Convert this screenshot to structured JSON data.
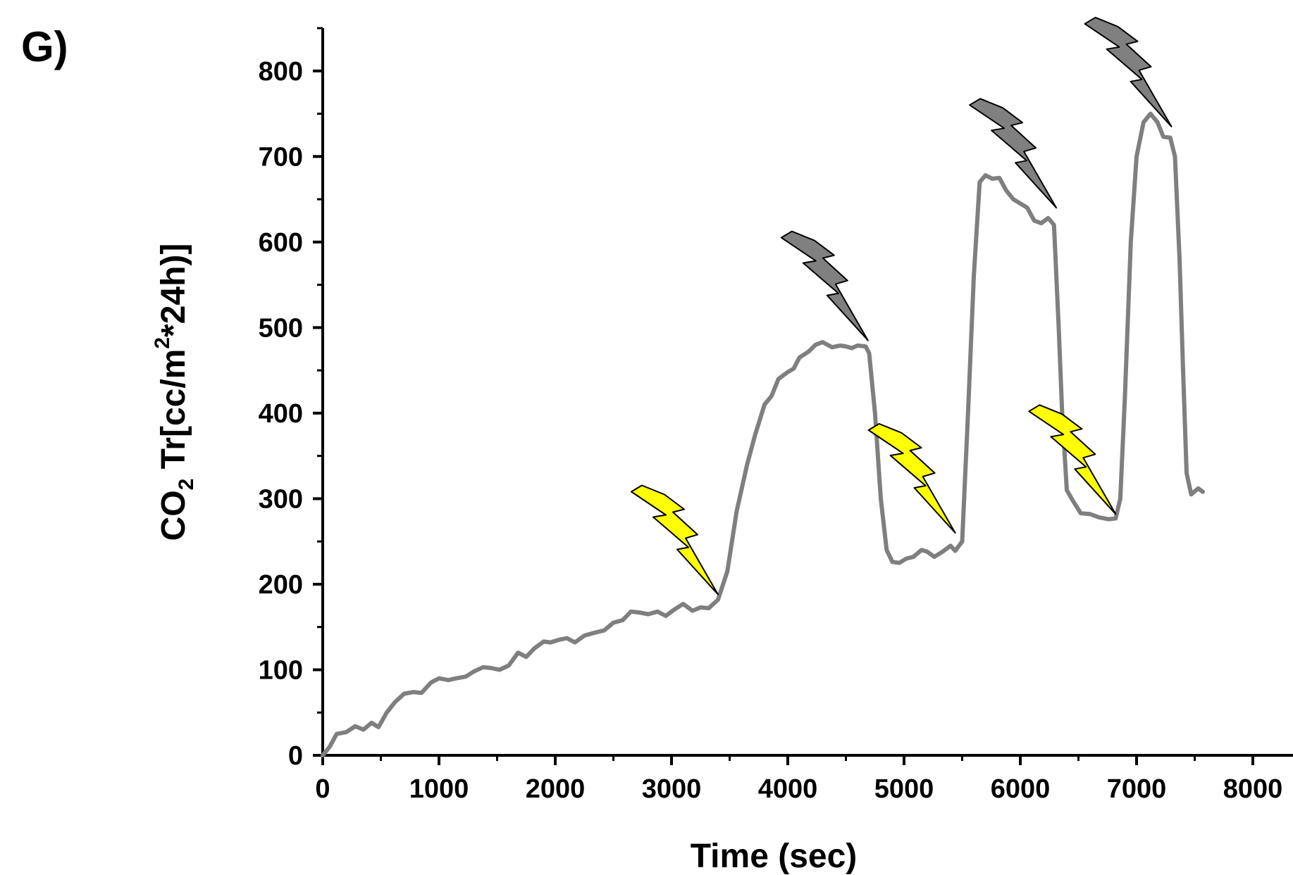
{
  "panel_label": "G)",
  "colors": {
    "series": "#7f7f7f",
    "bolt_yellow": "#ffff00",
    "bolt_gray": "#808080",
    "axis": "#000000"
  },
  "chart_data": {
    "type": "line",
    "xlabel": "Time (sec)",
    "ylabel": {
      "prefix": "CO",
      "sub": "2",
      "middle": " Tr[cc/m",
      "sup": "2",
      "suffix": "*24h)]"
    },
    "xlim": [
      0,
      8000
    ],
    "ylim": [
      0,
      850
    ],
    "xticks": [
      0,
      1000,
      2000,
      3000,
      4000,
      5000,
      6000,
      7000,
      8000
    ],
    "yticks": [
      0,
      100,
      200,
      300,
      400,
      500,
      600,
      700,
      800
    ],
    "grid": false,
    "series": [
      {
        "points": [
          [
            0,
            0
          ],
          [
            60,
            10
          ],
          [
            120,
            25
          ],
          [
            200,
            27
          ],
          [
            280,
            34
          ],
          [
            350,
            30
          ],
          [
            420,
            38
          ],
          [
            480,
            33
          ],
          [
            550,
            50
          ],
          [
            620,
            62
          ],
          [
            700,
            72
          ],
          [
            780,
            74
          ],
          [
            850,
            73
          ],
          [
            930,
            85
          ],
          [
            1000,
            90
          ],
          [
            1080,
            88
          ],
          [
            1150,
            90
          ],
          [
            1230,
            92
          ],
          [
            1300,
            98
          ],
          [
            1380,
            103
          ],
          [
            1450,
            102
          ],
          [
            1520,
            100
          ],
          [
            1600,
            105
          ],
          [
            1680,
            120
          ],
          [
            1750,
            115
          ],
          [
            1820,
            125
          ],
          [
            1900,
            133
          ],
          [
            1960,
            132
          ],
          [
            2030,
            135
          ],
          [
            2100,
            137
          ],
          [
            2170,
            132
          ],
          [
            2250,
            140
          ],
          [
            2330,
            143
          ],
          [
            2420,
            146
          ],
          [
            2500,
            155
          ],
          [
            2580,
            158
          ],
          [
            2650,
            168
          ],
          [
            2720,
            167
          ],
          [
            2800,
            165
          ],
          [
            2880,
            168
          ],
          [
            2950,
            163
          ],
          [
            3020,
            170
          ],
          [
            3100,
            177
          ],
          [
            3180,
            169
          ],
          [
            3250,
            173
          ],
          [
            3320,
            172
          ],
          [
            3400,
            182
          ],
          [
            3480,
            215
          ],
          [
            3560,
            285
          ],
          [
            3650,
            340
          ],
          [
            3720,
            375
          ],
          [
            3800,
            410
          ],
          [
            3860,
            420
          ],
          [
            3920,
            440
          ],
          [
            4000,
            448
          ],
          [
            4050,
            452
          ],
          [
            4100,
            465
          ],
          [
            4180,
            472
          ],
          [
            4240,
            480
          ],
          [
            4300,
            483
          ],
          [
            4380,
            477
          ],
          [
            4450,
            479
          ],
          [
            4500,
            478
          ],
          [
            4550,
            476
          ],
          [
            4600,
            479
          ],
          [
            4670,
            478
          ],
          [
            4700,
            470
          ],
          [
            4750,
            400
          ],
          [
            4800,
            300
          ],
          [
            4850,
            240
          ],
          [
            4900,
            226
          ],
          [
            4960,
            225
          ],
          [
            5020,
            230
          ],
          [
            5080,
            232
          ],
          [
            5150,
            240
          ],
          [
            5200,
            238
          ],
          [
            5260,
            232
          ],
          [
            5330,
            238
          ],
          [
            5400,
            245
          ],
          [
            5440,
            239
          ],
          [
            5500,
            250
          ],
          [
            5550,
            400
          ],
          [
            5600,
            560
          ],
          [
            5650,
            670
          ],
          [
            5700,
            678
          ],
          [
            5760,
            674
          ],
          [
            5820,
            675
          ],
          [
            5880,
            660
          ],
          [
            5940,
            650
          ],
          [
            6000,
            645
          ],
          [
            6060,
            640
          ],
          [
            6120,
            625
          ],
          [
            6180,
            622
          ],
          [
            6240,
            628
          ],
          [
            6290,
            620
          ],
          [
            6330,
            500
          ],
          [
            6360,
            400
          ],
          [
            6400,
            310
          ],
          [
            6450,
            298
          ],
          [
            6520,
            283
          ],
          [
            6600,
            282
          ],
          [
            6680,
            278
          ],
          [
            6760,
            276
          ],
          [
            6820,
            277
          ],
          [
            6860,
            300
          ],
          [
            6900,
            420
          ],
          [
            6950,
            600
          ],
          [
            7000,
            700
          ],
          [
            7060,
            740
          ],
          [
            7120,
            750
          ],
          [
            7180,
            740
          ],
          [
            7230,
            723
          ],
          [
            7290,
            722
          ],
          [
            7330,
            700
          ],
          [
            7370,
            580
          ],
          [
            7400,
            450
          ],
          [
            7430,
            330
          ],
          [
            7470,
            305
          ],
          [
            7530,
            312
          ],
          [
            7570,
            308
          ]
        ]
      }
    ],
    "annotations": [
      {
        "type": "lightning-bolt",
        "color": "yellow",
        "tip": [
          3400,
          188
        ]
      },
      {
        "type": "lightning-bolt",
        "color": "gray",
        "tip": [
          4690,
          485
        ]
      },
      {
        "type": "lightning-bolt",
        "color": "yellow",
        "tip": [
          5440,
          260
        ]
      },
      {
        "type": "lightning-bolt",
        "color": "gray",
        "tip": [
          6310,
          640
        ]
      },
      {
        "type": "lightning-bolt",
        "color": "yellow",
        "tip": [
          6820,
          282
        ]
      },
      {
        "type": "lightning-bolt",
        "color": "gray",
        "tip": [
          7300,
          735
        ]
      }
    ]
  }
}
